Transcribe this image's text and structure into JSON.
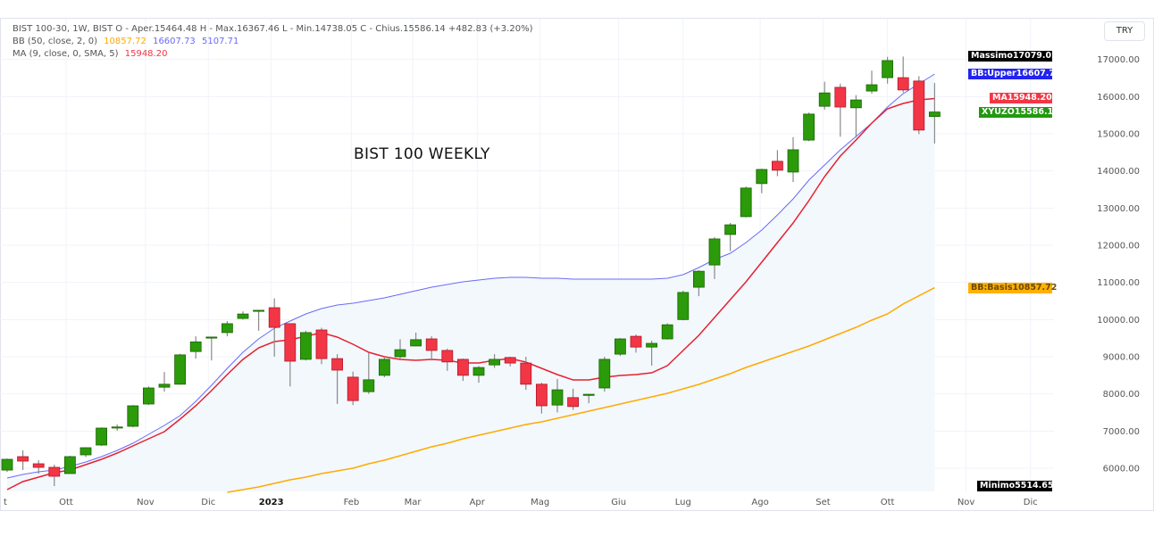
{
  "legend": {
    "line1": "BIST 100-30, 1W, BIST  O - Aper.15464.48  H - Max.16367.46  L - Min.14738.05  C - Chius.15586.14  +482.83 (+3.20%)",
    "bb_label": "BB (50, close, 2, 0)",
    "bb_basis": "10857.72",
    "bb_upper": "16607.73",
    "bb_lower": "5107.71",
    "ma_label": "MA (9, close, 0, SMA, 5)",
    "ma_value": "15948.20"
  },
  "currency_button": "TRY",
  "price_labels": [
    {
      "name": "Massimo",
      "value": "17079.02",
      "price": 17079.02,
      "bg": "#000000",
      "fg": "#ffffff"
    },
    {
      "name": "BB:Upper",
      "value": "16607.73",
      "price": 16607.73,
      "bg": "#2323f0",
      "fg": "#ffffff"
    },
    {
      "name": "MA",
      "value": "15948.20",
      "price": 15948.2,
      "bg": "#f23645",
      "fg": "#ffffff"
    },
    {
      "name": "XYUZO",
      "value": "15586.14",
      "price": 15586.14,
      "bg": "#22990f",
      "fg": "#ffffff"
    },
    {
      "name": "BB:Basis",
      "value": "10857.72",
      "price": 10857.72,
      "bg": "#ffb000",
      "fg": "#6b4a00"
    },
    {
      "name": "Minimo",
      "value": "5514.65",
      "price": 5514.65,
      "bg": "#000000",
      "fg": "#ffffff"
    }
  ],
  "chart_data": {
    "type": "candlestick",
    "title": "BIST 100 WEEKLY",
    "ylim": [
      5400,
      18000
    ],
    "y_ticks": [
      6000,
      7000,
      8000,
      9000,
      10000,
      11000,
      12000,
      13000,
      14000,
      15000,
      16000,
      17000
    ],
    "y_tick_labels": [
      "6000.00",
      "7000.00",
      "8000.00",
      "9000.00",
      "10000.00",
      "11000.00",
      "12000.00",
      "13000.00",
      "14000.00",
      "15000.00",
      "16000.00",
      "17000.00"
    ],
    "x_ticks": [
      {
        "label": "t",
        "index": 0
      },
      {
        "label": "Ott",
        "index": 3.75
      },
      {
        "label": "Nov",
        "index": 8.8
      },
      {
        "label": "Dic",
        "index": 12.8
      },
      {
        "label": "2023",
        "index": 16.8,
        "bold": true
      },
      {
        "label": "Feb",
        "index": 21.9
      },
      {
        "label": "Mar",
        "index": 25.8
      },
      {
        "label": "Apr",
        "index": 29.9
      },
      {
        "label": "Mag",
        "index": 33.9
      },
      {
        "label": "Giu",
        "index": 38.9
      },
      {
        "label": "Lug",
        "index": 43
      },
      {
        "label": "Ago",
        "index": 47.9
      },
      {
        "label": "Set",
        "index": 51.9
      },
      {
        "label": "Ott",
        "index": 56
      },
      {
        "label": "Nov",
        "index": 61
      },
      {
        "label": "Dic",
        "index": 65.1
      }
    ],
    "grid": true,
    "colors": {
      "up": "#2b9a0b",
      "down": "#f23645",
      "ma": "#e8202f",
      "bb_upper": "#6a6af5",
      "bb_basis": "#ffaa00",
      "band_fill": "#f3f8fd"
    },
    "ohlc": [
      [
        5950,
        6260,
        5900,
        6240
      ],
      [
        6312,
        6480,
        5952,
        6192
      ],
      [
        6120,
        6216,
        5856,
        6024
      ],
      [
        6024,
        6096,
        5520,
        5784
      ],
      [
        5856,
        6336,
        5856,
        6312
      ],
      [
        6360,
        6560,
        6300,
        6552
      ],
      [
        6624,
        7100,
        6600,
        7080
      ],
      [
        7100,
        7180,
        7010,
        7110
      ],
      [
        7128,
        7700,
        7100,
        7680
      ],
      [
        7728,
        8200,
        7700,
        8160
      ],
      [
        8180,
        8590,
        8060,
        8260
      ],
      [
        8260,
        9080,
        8250,
        9050
      ],
      [
        9140,
        9550,
        8950,
        9400
      ],
      [
        9520,
        9540,
        8900,
        9530
      ],
      [
        9650,
        9960,
        9550,
        9890
      ],
      [
        10030,
        10220,
        10000,
        10150
      ],
      [
        10240,
        10260,
        9700,
        10250
      ],
      [
        10320,
        10570,
        9000,
        9790
      ],
      [
        9890,
        9900,
        8200,
        8880
      ],
      [
        8930,
        9700,
        8900,
        9650
      ],
      [
        9720,
        9780,
        8800,
        8950
      ],
      [
        8950,
        9070,
        7730,
        8640
      ],
      [
        8450,
        8600,
        7700,
        7820
      ],
      [
        8060,
        9100,
        8000,
        8380
      ],
      [
        8500,
        9000,
        8450,
        8930
      ],
      [
        9000,
        9470,
        8950,
        9190
      ],
      [
        9290,
        9650,
        9280,
        9460
      ],
      [
        9480,
        9550,
        8900,
        9170
      ],
      [
        9170,
        9220,
        8620,
        8860
      ],
      [
        8930,
        8950,
        8350,
        8500
      ],
      [
        8500,
        8750,
        8300,
        8710
      ],
      [
        8780,
        9070,
        8700,
        8930
      ],
      [
        8980,
        9000,
        8740,
        8830
      ],
      [
        8830,
        9000,
        8110,
        8260
      ],
      [
        8260,
        8300,
        7470,
        7680
      ],
      [
        7700,
        8400,
        7500,
        8110
      ],
      [
        7900,
        8140,
        7570,
        7660
      ],
      [
        7960,
        8000,
        7750,
        7990
      ],
      [
        8160,
        9000,
        8060,
        8930
      ],
      [
        9070,
        9500,
        9020,
        9480
      ],
      [
        9550,
        9600,
        9110,
        9260
      ],
      [
        9260,
        9430,
        8760,
        9360
      ],
      [
        9480,
        9900,
        9460,
        9860
      ],
      [
        10000,
        10780,
        9980,
        10730
      ],
      [
        10870,
        11330,
        10630,
        11300
      ],
      [
        11470,
        12220,
        11090,
        12170
      ],
      [
        12290,
        12600,
        11840,
        12550
      ],
      [
        12770,
        13580,
        12750,
        13540
      ],
      [
        13660,
        14060,
        13400,
        14040
      ],
      [
        14260,
        14560,
        13860,
        14020
      ],
      [
        13970,
        14910,
        13700,
        14570
      ],
      [
        14830,
        15570,
        14800,
        15530
      ],
      [
        15740,
        16400,
        15650,
        16100
      ],
      [
        16250,
        16350,
        14920,
        15720
      ],
      [
        15700,
        16040,
        14900,
        15910
      ],
      [
        16150,
        16700,
        16080,
        16320
      ],
      [
        16510,
        17070,
        16350,
        16970
      ],
      [
        16510,
        17079,
        16110,
        16180
      ],
      [
        16420,
        16550,
        14990,
        15100
      ],
      [
        15464.48,
        16367.46,
        14738.05,
        15586.14
      ]
    ],
    "ma": [
      5424,
      5640,
      5760,
      5880,
      5952,
      6096,
      6240,
      6408,
      6600,
      6792,
      6984,
      7320,
      7680,
      8088,
      8520,
      8928,
      9240,
      9408,
      9456,
      9552,
      9648,
      9528,
      9336,
      9120,
      9000,
      8928,
      8904,
      8928,
      8904,
      8832,
      8832,
      8904,
      8952,
      8856,
      8688,
      8520,
      8376,
      8376,
      8448,
      8496,
      8520,
      8568,
      8760,
      9168,
      9576,
      10056,
      10536,
      11016,
      11544,
      12072,
      12600,
      13200,
      13848,
      14400,
      14832,
      15288,
      15672,
      15816,
      15912,
      15948.2
    ],
    "bb_upper": [
      5736,
      5832,
      5904,
      5952,
      6048,
      6168,
      6312,
      6480,
      6672,
      6912,
      7152,
      7416,
      7800,
      8232,
      8688,
      9120,
      9480,
      9768,
      9960,
      10152,
      10296,
      10392,
      10440,
      10512,
      10584,
      10680,
      10776,
      10872,
      10944,
      11016,
      11064,
      11112,
      11136,
      11136,
      11112,
      11112,
      11088,
      11088,
      11088,
      11088,
      11088,
      11088,
      11112,
      11208,
      11400,
      11616,
      11784,
      12072,
      12408,
      12816,
      13248,
      13752,
      14160,
      14568,
      14928,
      15288,
      15720,
      16080,
      16344,
      16607.73
    ],
    "bb_basis": [
      null,
      null,
      null,
      null,
      null,
      null,
      null,
      null,
      null,
      null,
      null,
      null,
      null,
      null,
      5352,
      5424,
      5496,
      5592,
      5688,
      5760,
      5856,
      5928,
      6000,
      6120,
      6216,
      6336,
      6456,
      6576,
      6672,
      6792,
      6888,
      6984,
      7080,
      7176,
      7248,
      7344,
      7440,
      7536,
      7632,
      7728,
      7824,
      7920,
      8016,
      8136,
      8256,
      8400,
      8544,
      8712,
      8856,
      9000,
      9144,
      9288,
      9456,
      9624,
      9792,
      9984,
      10152,
      10420,
      10640,
      10857.72
    ]
  }
}
